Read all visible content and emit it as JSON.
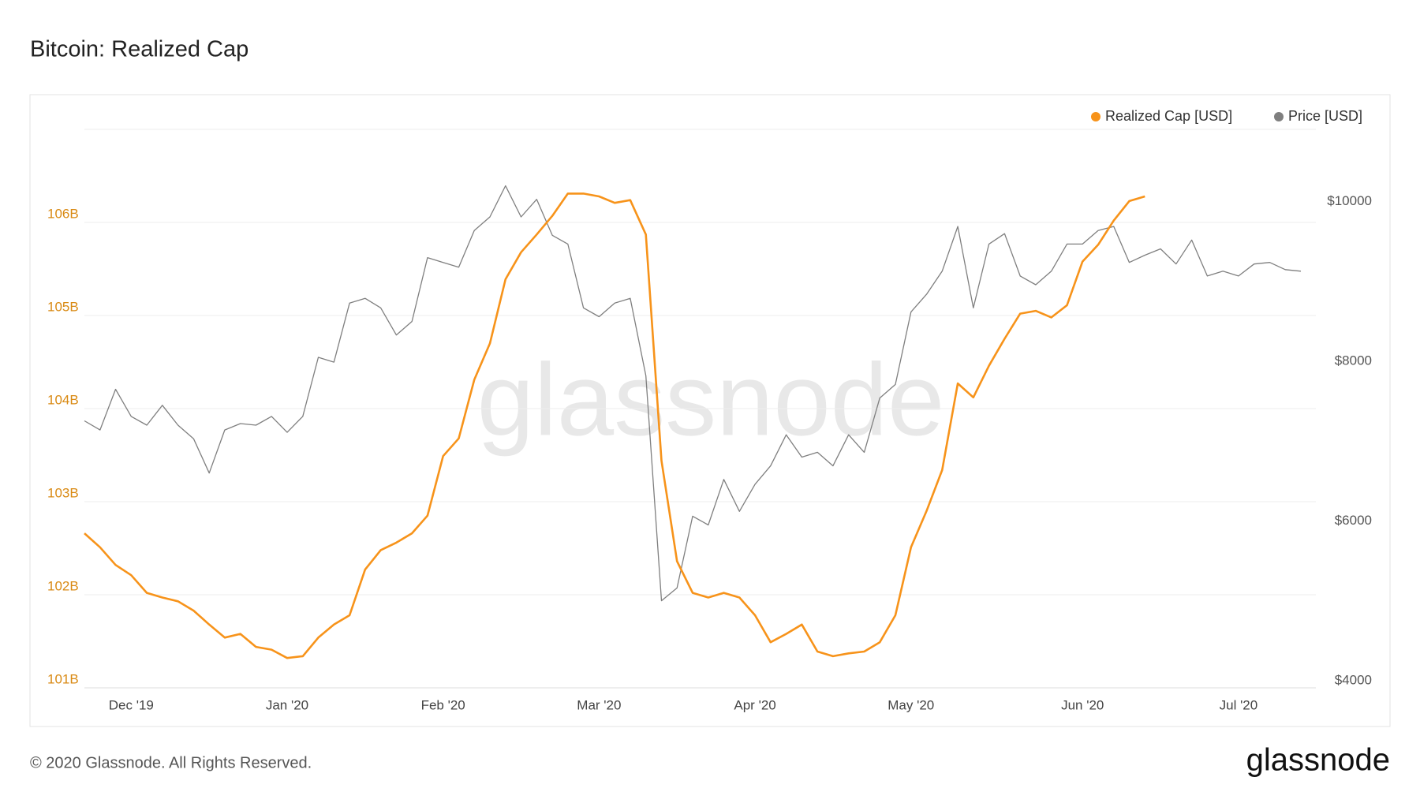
{
  "title": "Bitcoin: Realized Cap",
  "watermark": "glassnode",
  "footer": {
    "copyright": "© 2020 Glassnode. All Rights Reserved.",
    "logo": "glassnode"
  },
  "chart_data": {
    "type": "line",
    "categories": [
      null,
      null,
      null,
      "Dec '19",
      null,
      null,
      null,
      null,
      null,
      null,
      null,
      null,
      null,
      "Jan '20",
      null,
      null,
      null,
      null,
      null,
      null,
      null,
      null,
      null,
      "Feb '20",
      null,
      null,
      null,
      null,
      null,
      null,
      null,
      null,
      null,
      "Mar '20",
      null,
      null,
      null,
      null,
      null,
      null,
      null,
      null,
      null,
      "Apr '20",
      null,
      null,
      null,
      null,
      null,
      null,
      null,
      null,
      null,
      "May '20",
      null,
      null,
      null,
      null,
      null,
      null,
      null,
      null,
      null,
      null,
      "Jun '20",
      null,
      null,
      null,
      null,
      null,
      null,
      null,
      null,
      null,
      "Jul '20",
      null,
      null,
      null,
      null
    ],
    "series": [
      {
        "name": "Realized Cap [USD]",
        "color": "#f7931a",
        "axis": "y",
        "values": [
          102.66,
          102.51,
          102.32,
          102.21,
          102.02,
          101.97,
          101.93,
          101.83,
          101.68,
          101.54,
          101.58,
          101.44,
          101.41,
          101.32,
          101.34,
          101.54,
          101.68,
          101.78,
          102.27,
          102.48,
          102.56,
          102.66,
          102.85,
          103.49,
          103.68,
          104.31,
          104.7,
          105.39,
          105.68,
          105.87,
          106.07,
          106.31,
          106.31,
          106.28,
          106.21,
          106.24,
          105.87,
          103.44,
          102.36,
          102.02,
          101.97,
          102.02,
          101.97,
          101.78,
          101.49,
          101.58,
          101.68,
          101.39,
          101.34,
          101.37,
          101.39,
          101.49,
          101.78,
          102.51,
          102.9,
          103.34,
          104.27,
          104.12,
          104.46,
          104.75,
          105.02,
          105.05,
          104.98,
          105.11,
          105.58,
          105.76,
          106.02,
          106.23,
          106.28,
          null,
          null,
          null,
          null,
          null,
          null,
          null,
          null,
          null,
          null
        ]
      },
      {
        "name": "Price [USD]",
        "color": "#7f7f7f",
        "axis": "y2",
        "values": [
          7255,
          7140,
          7650,
          7310,
          7200,
          7450,
          7200,
          7030,
          6600,
          7140,
          7220,
          7200,
          7310,
          7110,
          7310,
          8050,
          7990,
          8730,
          8790,
          8670,
          8330,
          8500,
          9300,
          9240,
          9180,
          9640,
          9810,
          10200,
          9810,
          10030,
          9580,
          9470,
          8670,
          8560,
          8730,
          8790,
          7820,
          5000,
          5160,
          6060,
          5950,
          6520,
          6120,
          6460,
          6690,
          7080,
          6800,
          6860,
          6690,
          7080,
          6860,
          7540,
          7710,
          8620,
          8840,
          9130,
          9690,
          8670,
          9470,
          9600,
          9070,
          8960,
          9130,
          9470,
          9470,
          9640,
          9690,
          9240,
          9330,
          9410,
          9220,
          9520,
          9070,
          9130,
          9070,
          9220,
          9240,
          9150,
          9130
        ]
      }
    ],
    "ylim": [
      101,
      107
    ],
    "yticks": [
      {
        "value": 101,
        "label": "101B"
      },
      {
        "value": 102,
        "label": "102B"
      },
      {
        "value": 103,
        "label": "103B"
      },
      {
        "value": 104,
        "label": "104B"
      },
      {
        "value": 105,
        "label": "105B"
      },
      {
        "value": 106,
        "label": "106B"
      }
    ],
    "y2lim": [
      3909,
      10907
    ],
    "y2ticks": [
      {
        "value": 4000,
        "label": "$4000"
      },
      {
        "value": 6000,
        "label": "$6000"
      },
      {
        "value": 8000,
        "label": "$8000"
      },
      {
        "value": 10000,
        "label": "$10000"
      }
    ],
    "grid": true,
    "legend": "top-right"
  }
}
